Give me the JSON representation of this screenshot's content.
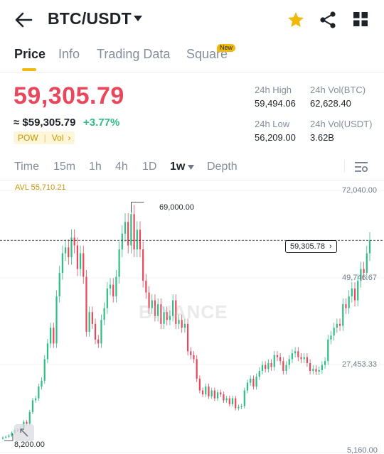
{
  "header": {
    "pair": "BTC/USDT",
    "icons": [
      "back-arrow-icon",
      "caret-down-icon",
      "star-icon",
      "share-icon",
      "grid-icon"
    ],
    "favorite_color": "#f0b90b"
  },
  "tabs": [
    {
      "label": "Price",
      "active": true
    },
    {
      "label": "Info",
      "active": false
    },
    {
      "label": "Trading Data",
      "active": false
    },
    {
      "label": "Square",
      "active": false,
      "badge": "New"
    }
  ],
  "price": {
    "last": "59,305.79",
    "converted": "≈ $59,305.79",
    "change": "+3.77%",
    "tags": [
      "POW",
      "Vol"
    ],
    "down_color": "#e8475c",
    "up_color": "#2ebd85"
  },
  "stats": {
    "high_label": "24h High",
    "high_value": "59,494.06",
    "low_label": "24h Low",
    "low_value": "56,209.00",
    "vol_btc_label": "24h Vol(BTC)",
    "vol_btc_value": "62,628.40",
    "vol_usdt_label": "24h Vol(USDT)",
    "vol_usdt_value": "3.62B"
  },
  "intervals": {
    "items": [
      "Time",
      "15m",
      "1h",
      "4h",
      "1D",
      "1w",
      "Depth"
    ],
    "selected": "1w"
  },
  "chart_data": {
    "type": "candlestick",
    "avl_label": "AVL 55,710.21",
    "y_ticks": [
      "72,040.00",
      "49,746.67",
      "27,453.33",
      "5,160.00"
    ],
    "max_label": "69,000.00",
    "min_label": "8,200.00",
    "current_price_label": "59,305.78",
    "watermark": "BINANCE",
    "ylim": [
      5160,
      72040
    ],
    "closes": [
      9000,
      9200,
      9500,
      10200,
      11000,
      10800,
      11500,
      13000,
      12500,
      15500,
      18500,
      19000,
      22000,
      23500,
      29000,
      33000,
      37000,
      33000,
      45000,
      51000,
      56000,
      57500,
      55000,
      60000,
      58000,
      52000,
      56000,
      50000,
      36000,
      41000,
      38000,
      34000,
      33000,
      39000,
      42000,
      47000,
      48000,
      45000,
      50000,
      57000,
      61000,
      64000,
      58000,
      66000,
      57000,
      62000,
      57000,
      49000,
      46000,
      42000,
      44000,
      40000,
      43000,
      38000,
      41000,
      39000,
      40000,
      44000,
      38000,
      39000,
      37000,
      38000,
      31000,
      30000,
      29000,
      24000,
      21000,
      20000,
      22000,
      19500,
      21000,
      19000,
      20500,
      20000,
      18500,
      19000,
      17500,
      19000,
      16500,
      16800,
      17000,
      21000,
      23000,
      24000,
      22000,
      24500,
      26000,
      27500,
      26500,
      28000,
      27000,
      30000,
      29500,
      28500,
      26000,
      27500,
      29000,
      30500,
      31000,
      29500,
      29000,
      29500,
      28000,
      26000,
      26500,
      25800,
      26200,
      27500,
      28500,
      34000,
      35000,
      37000,
      38000,
      37500,
      43000,
      42000,
      45000,
      47000,
      44000,
      49000,
      52000,
      51000,
      56000,
      59305
    ]
  }
}
